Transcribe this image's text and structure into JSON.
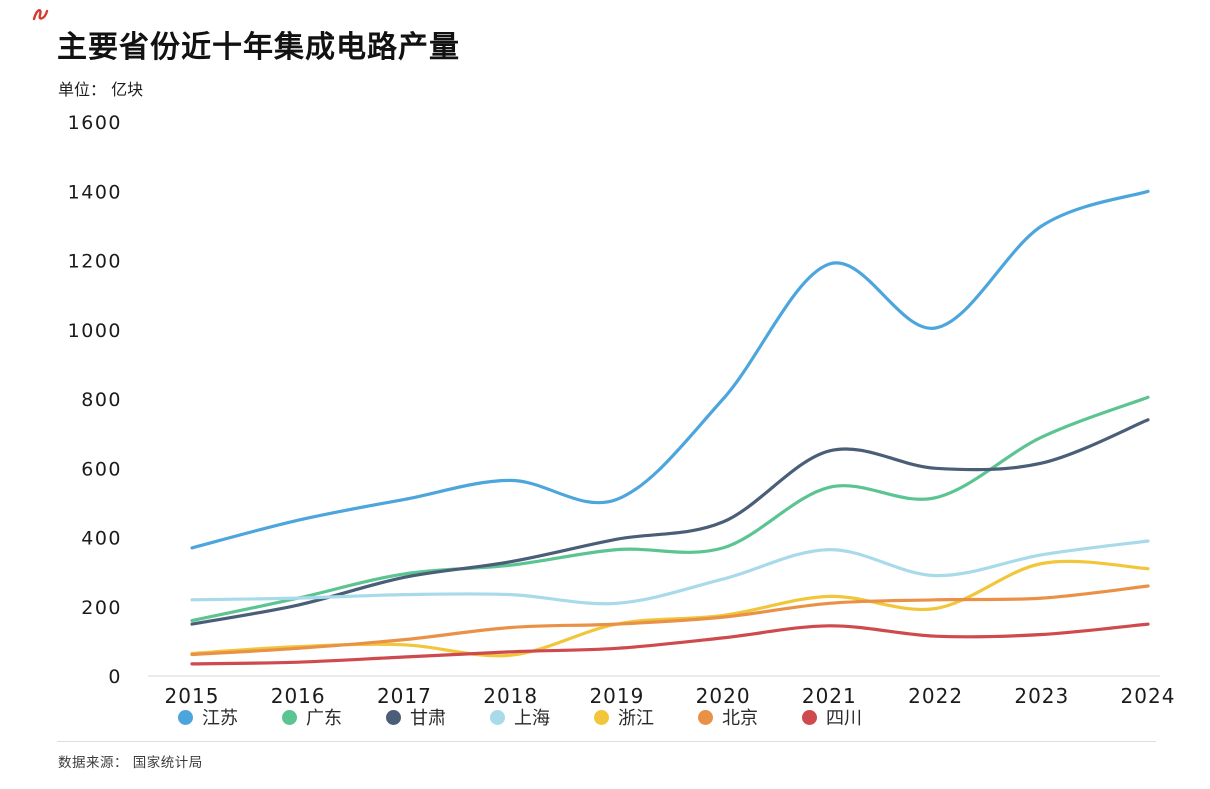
{
  "page": {
    "title": "主要省份近十年集成电路产量",
    "subtitle": "单位： 亿块",
    "source": "数据来源： 国家统计局"
  },
  "colors": {
    "axis_text": "#1b1b1d",
    "baseline": "#ebebeb",
    "corner_mark": "#d63a2f"
  },
  "chart_data": {
    "type": "line",
    "title": "主要省份近十年集成电路产量",
    "unit_label": "单位： 亿块",
    "source_label": "数据来源： 国家统计局",
    "x": [
      2015,
      2016,
      2017,
      2018,
      2019,
      2020,
      2021,
      2022,
      2023,
      2024
    ],
    "ylim": [
      0,
      1600
    ],
    "ytick_step": 200,
    "grid": false,
    "legend_position": "bottom",
    "series": [
      {
        "name": "江苏",
        "key": "jiangsu",
        "color": "#4CA6DD",
        "values": [
          370,
          450,
          510,
          565,
          510,
          800,
          1190,
          1005,
          1300,
          1400
        ]
      },
      {
        "name": "广东",
        "key": "guangdong",
        "color": "#5BC491",
        "values": [
          160,
          225,
          295,
          320,
          365,
          370,
          545,
          515,
          690,
          805
        ]
      },
      {
        "name": "甘肃",
        "key": "gansu",
        "color": "#4A5E78",
        "values": [
          150,
          205,
          285,
          330,
          395,
          445,
          650,
          600,
          615,
          740
        ]
      },
      {
        "name": "上海",
        "key": "shanghai",
        "color": "#A9DAEA",
        "values": [
          220,
          225,
          235,
          235,
          210,
          280,
          365,
          290,
          350,
          390
        ]
      },
      {
        "name": "浙江",
        "key": "zhejiang",
        "color": "#F2C63B",
        "values": [
          65,
          85,
          90,
          60,
          150,
          175,
          230,
          195,
          325,
          310
        ]
      },
      {
        "name": "北京",
        "key": "beijing",
        "color": "#EA9148",
        "values": [
          62,
          80,
          105,
          140,
          150,
          170,
          210,
          220,
          225,
          260
        ]
      },
      {
        "name": "四川",
        "key": "sichuan",
        "color": "#CE4A4E",
        "values": [
          35,
          40,
          55,
          70,
          80,
          110,
          145,
          115,
          120,
          150
        ]
      }
    ]
  }
}
